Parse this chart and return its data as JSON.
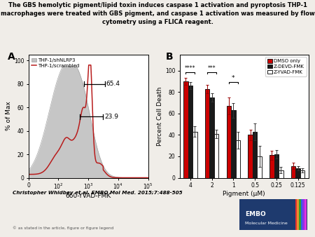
{
  "title_line1": "The GBS hemolytic pigment/lipid toxin induces caspase 1 activation and pyroptosis THP-1",
  "title_line2": "macrophages were treated with GBS pigment, and caspase 1 activation was measured by flow",
  "title_line3": "cytometry using a FLICA reagent.",
  "panel_A_label": "A",
  "panel_B_label": "B",
  "hist_xlabel": "660-YVAD-FMK",
  "hist_ylabel": "% of Max",
  "hist_legend": [
    "THP-1/shNLRP3",
    "THP-1/scrambled"
  ],
  "annotation_65": "65.4",
  "annotation_23": "23.9",
  "bar_xlabel": "Pigment (μM)",
  "bar_ylabel": "Percent Cell Death",
  "bar_categories": [
    "4",
    "2",
    "1",
    "0.5",
    "0.25",
    "0.125"
  ],
  "bar_legend": [
    "DMSO only",
    "Z-DEVD-FMK",
    "Z-YVAD-FMK"
  ],
  "bar_colors": [
    "#cc0000",
    "#1a1a1a",
    "#ffffff"
  ],
  "bar_edgecolor": "#1a1a1a",
  "dmso_values": [
    90,
    83,
    67,
    40,
    21,
    11
  ],
  "devd_values": [
    86,
    75,
    63,
    43,
    22,
    9
  ],
  "yvad_values": [
    43,
    41,
    35,
    20,
    7,
    7
  ],
  "dmso_errors": [
    3,
    4,
    8,
    5,
    4,
    3
  ],
  "devd_errors": [
    3,
    4,
    7,
    8,
    4,
    2
  ],
  "yvad_errors": [
    5,
    4,
    8,
    10,
    3,
    2
  ],
  "sig_4_label": "****",
  "sig_2_label": "***",
  "sig_1_label": "*",
  "footer_text": "Christopher Whidbey et al. EMBO Mol Med. 2015;7:488-505",
  "copyright_text": "© as stated in the article, figure or figure legend",
  "background_color": "#f0ede8"
}
